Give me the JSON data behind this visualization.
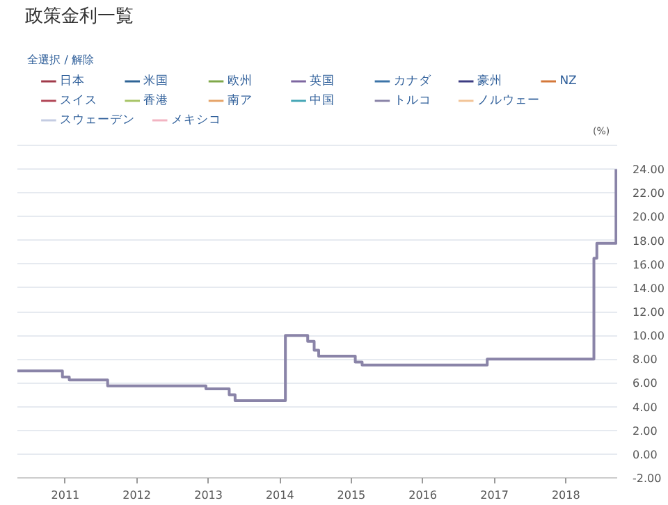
{
  "chart_data": {
    "type": "step",
    "title": "政策金利一覧",
    "annotations": [
      "全選択 / 解除"
    ],
    "ylabel": "(%)",
    "x": [
      "2010-05-01",
      "2010-12-17",
      "2011-01-21",
      "2011-08-05",
      "2012-12-19",
      "2013-04-17",
      "2013-05-17",
      "2014-01-29",
      "2014-05-23",
      "2014-06-25",
      "2014-07-18",
      "2015-01-21",
      "2015-02-25",
      "2016-11-25",
      "2018-05-24",
      "2018-06-08",
      "2018-09-14"
    ],
    "series": [
      {
        "name": "日本",
        "color": "#a03a4a",
        "values": [
          null,
          null,
          null,
          null,
          null,
          null,
          null,
          null,
          null,
          null,
          null,
          null,
          null,
          null,
          null,
          null,
          null
        ]
      },
      {
        "name": "米国",
        "color": "#2f6496",
        "values": [
          null,
          null,
          null,
          null,
          null,
          null,
          null,
          null,
          null,
          null,
          null,
          null,
          null,
          null,
          null,
          null,
          null
        ]
      },
      {
        "name": "欧州",
        "color": "#7fa84a",
        "values": [
          null,
          null,
          null,
          null,
          null,
          null,
          null,
          null,
          null,
          null,
          null,
          null,
          null,
          null,
          null,
          null,
          null
        ]
      },
      {
        "name": "英国",
        "color": "#7d66a0",
        "values": [
          null,
          null,
          null,
          null,
          null,
          null,
          null,
          null,
          null,
          null,
          null,
          null,
          null,
          null,
          null,
          null,
          null
        ]
      },
      {
        "name": "カナダ",
        "color": "#3c74a8",
        "values": [
          null,
          null,
          null,
          null,
          null,
          null,
          null,
          null,
          null,
          null,
          null,
          null,
          null,
          null,
          null,
          null,
          null
        ]
      },
      {
        "name": "豪州",
        "color": "#3c3c82",
        "values": [
          null,
          null,
          null,
          null,
          null,
          null,
          null,
          null,
          null,
          null,
          null,
          null,
          null,
          null,
          null,
          null,
          null
        ]
      },
      {
        "name": "NZ",
        "color": "#d4783a",
        "values": [
          null,
          null,
          null,
          null,
          null,
          null,
          null,
          null,
          null,
          null,
          null,
          null,
          null,
          null,
          null,
          null,
          null
        ]
      },
      {
        "name": "スイス",
        "color": "#b24858",
        "values": [
          null,
          null,
          null,
          null,
          null,
          null,
          null,
          null,
          null,
          null,
          null,
          null,
          null,
          null,
          null,
          null,
          null
        ]
      },
      {
        "name": "香港",
        "color": "#a8c468",
        "values": [
          null,
          null,
          null,
          null,
          null,
          null,
          null,
          null,
          null,
          null,
          null,
          null,
          null,
          null,
          null,
          null,
          null
        ]
      },
      {
        "name": "南ア",
        "color": "#e6a46a",
        "values": [
          null,
          null,
          null,
          null,
          null,
          null,
          null,
          null,
          null,
          null,
          null,
          null,
          null,
          null,
          null,
          null,
          null
        ]
      },
      {
        "name": "中国",
        "color": "#46a6b6",
        "values": [
          null,
          null,
          null,
          null,
          null,
          null,
          null,
          null,
          null,
          null,
          null,
          null,
          null,
          null,
          null,
          null,
          null
        ]
      },
      {
        "name": "トルコ",
        "color": "#8a84a8",
        "values": [
          7.0,
          6.5,
          6.25,
          5.75,
          5.5,
          5.0,
          4.5,
          10.0,
          9.5,
          8.75,
          8.25,
          7.75,
          7.5,
          8.0,
          16.5,
          17.75,
          24.0
        ]
      },
      {
        "name": "ノルウェー",
        "color": "#f2c498",
        "values": [
          null,
          null,
          null,
          null,
          null,
          null,
          null,
          null,
          null,
          null,
          null,
          null,
          null,
          null,
          null,
          null,
          null
        ]
      },
      {
        "name": "スウェーデン",
        "color": "#c4cce2",
        "values": [
          null,
          null,
          null,
          null,
          null,
          null,
          null,
          null,
          null,
          null,
          null,
          null,
          null,
          null,
          null,
          null,
          null
        ]
      },
      {
        "name": "メキシコ",
        "color": "#f2b4c2",
        "values": [
          null,
          null,
          null,
          null,
          null,
          null,
          null,
          null,
          null,
          null,
          null,
          null,
          null,
          null,
          null,
          null,
          null
        ]
      }
    ],
    "xlim": [
      "2010-05-01",
      "2018-09-20"
    ],
    "xticks": [
      "2011",
      "2012",
      "2013",
      "2014",
      "2015",
      "2016",
      "2017",
      "2018"
    ],
    "ylim": [
      -2,
      26
    ],
    "yticks": [
      {
        "value": -2,
        "label": "-2.00"
      },
      {
        "value": 0,
        "label": "0.00"
      },
      {
        "value": 2,
        "label": "2.00"
      },
      {
        "value": 4,
        "label": "4.00"
      },
      {
        "value": 6,
        "label": "6.00"
      },
      {
        "value": 8,
        "label": "8.00"
      },
      {
        "value": 10,
        "label": "10.00"
      },
      {
        "value": 12,
        "label": "12.00"
      },
      {
        "value": 14,
        "label": "14.00"
      },
      {
        "value": 16,
        "label": "16.00"
      },
      {
        "value": 18,
        "label": "18.00"
      },
      {
        "value": 20,
        "label": "20.00"
      },
      {
        "value": 22,
        "label": "22.00"
      },
      {
        "value": 24,
        "label": "24.00"
      },
      {
        "value": 26,
        "label": null
      }
    ],
    "grid": "y",
    "legend": "top"
  }
}
